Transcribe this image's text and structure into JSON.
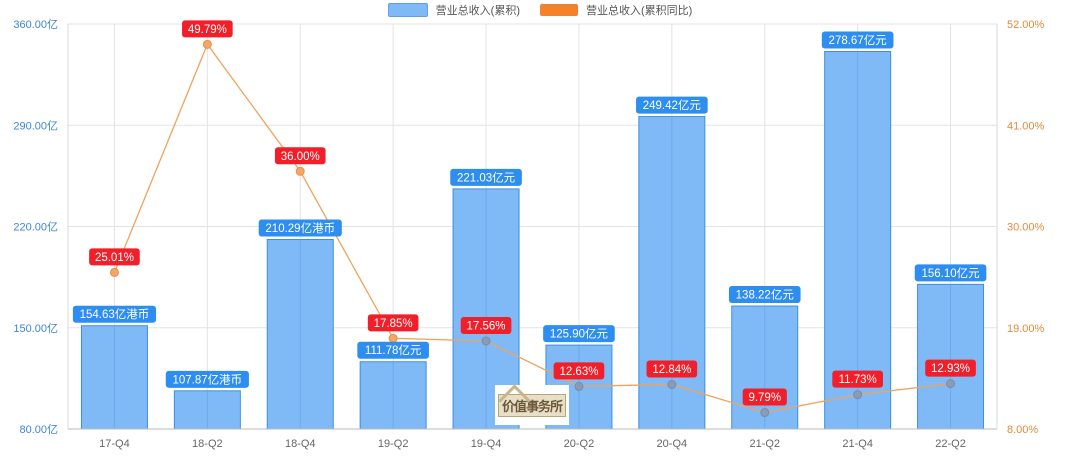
{
  "legend": [
    {
      "label": "营业总收入(累积)",
      "color": "#7fbaf7"
    },
    {
      "label": "营业总收入(累积同比)",
      "color": "#f5822a"
    }
  ],
  "watermark": {
    "text": "价值事务所"
  },
  "colors": {
    "bar_fill": "#7fbaf7",
    "bar_stroke": "#3d8fe0",
    "bar_label_bg": "#2e8ef0",
    "line": "#f0a35c",
    "line_label_bg": "#f01f2a",
    "left_axis": "#3d86d6",
    "right_axis": "#e38a3a",
    "grid": "#e3e3e3"
  },
  "chart_data": {
    "type": "bar+line",
    "title": "",
    "categories": [
      "17-Q4",
      "18-Q2",
      "18-Q4",
      "19-Q2",
      "19-Q4",
      "20-Q2",
      "20-Q4",
      "21-Q2",
      "21-Q4",
      "22-Q2"
    ],
    "series": [
      {
        "name": "营业总收入(累积)",
        "type": "bar",
        "axis": "left",
        "values": [
          154.63,
          107.87,
          210.29,
          111.78,
          221.03,
          125.9,
          249.42,
          138.22,
          278.67,
          156.1
        ],
        "labels": [
          "154.63亿港币",
          "107.87亿港币",
          "210.29亿港币",
          "111.78亿元",
          "221.03亿元",
          "125.90亿元",
          "249.42亿元",
          "138.22亿元",
          "278.67亿元",
          "156.10亿元"
        ],
        "plotted_values": [
          151.4,
          106.4,
          211.0,
          126.5,
          246.0,
          138.0,
          296.0,
          165.0,
          341.0,
          180.0
        ]
      },
      {
        "name": "营业总收入(累积同比)",
        "type": "line",
        "axis": "right",
        "values": [
          25.01,
          49.79,
          36.0,
          17.85,
          17.56,
          12.63,
          12.84,
          9.79,
          11.73,
          12.93
        ],
        "labels": [
          "25.01%",
          "49.79%",
          "36.00%",
          "17.85%",
          "17.56%",
          "12.63%",
          "12.84%",
          "9.79%",
          "11.73%",
          "12.93%"
        ]
      }
    ],
    "y_left": {
      "ticks": [
        "80.00亿",
        "150.00亿",
        "220.00亿",
        "290.00亿",
        "360.00亿"
      ],
      "min": 80,
      "max": 360
    },
    "y_right": {
      "ticks": [
        "8.00%",
        "19.00%",
        "30.00%",
        "41.00%",
        "52.00%"
      ],
      "min": 8,
      "max": 52
    },
    "xlabel": "",
    "ylabel": "",
    "grid": true,
    "legend_position": "top"
  }
}
